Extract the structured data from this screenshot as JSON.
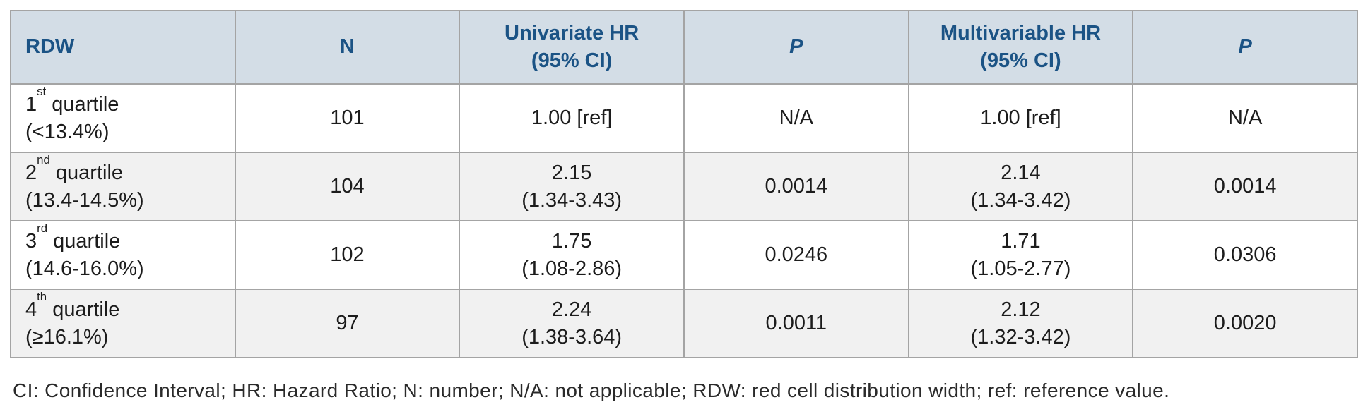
{
  "colors": {
    "header_bg": "#d3dde6",
    "header_text": "#1b5385",
    "row_alt_bg": "#f1f1f1",
    "border": "#a4a4a4",
    "body_text": "#1c1c1c"
  },
  "table": {
    "columns": {
      "rdw": "RDW",
      "n": "N",
      "uni_title": "Univariate HR",
      "uni_sub": "(95% CI)",
      "p1": "P",
      "multi_title": "Multivariable HR",
      "multi_sub": "(95% CI)",
      "p2": "P"
    },
    "rows": [
      {
        "quartile": {
          "num": "1",
          "sup": "st",
          "word": "quartile"
        },
        "range": "(<13.4%)",
        "n": "101",
        "uni_hr": "1.00 [ref]",
        "uni_ci": "",
        "uni_p": "N/A",
        "multi_hr": "1.00 [ref]",
        "multi_ci": "",
        "multi_p": "N/A"
      },
      {
        "quartile": {
          "num": "2",
          "sup": "nd",
          "word": "quartile"
        },
        "range": "(13.4-14.5%)",
        "n": "104",
        "uni_hr": "2.15",
        "uni_ci": "(1.34-3.43)",
        "uni_p": "0.0014",
        "multi_hr": "2.14",
        "multi_ci": "(1.34-3.42)",
        "multi_p": "0.0014"
      },
      {
        "quartile": {
          "num": "3",
          "sup": "rd",
          "word": "quartile"
        },
        "range": "(14.6-16.0%)",
        "n": "102",
        "uni_hr": "1.75",
        "uni_ci": "(1.08-2.86)",
        "uni_p": "0.0246",
        "multi_hr": "1.71",
        "multi_ci": "(1.05-2.77)",
        "multi_p": "0.0306"
      },
      {
        "quartile": {
          "num": "4",
          "sup": "th",
          "word": "quartile"
        },
        "range": "(≥16.1%)",
        "n": "97",
        "uni_hr": "2.24",
        "uni_ci": "(1.38-3.64)",
        "uni_p": "0.0011",
        "multi_hr": "2.12",
        "multi_ci": "(1.32-3.42)",
        "multi_p": "0.0020"
      }
    ]
  },
  "footnote": "CI: Confidence Interval; HR: Hazard Ratio; N: number; N/A: not applicable; RDW: red cell distribution width; ref: reference value."
}
